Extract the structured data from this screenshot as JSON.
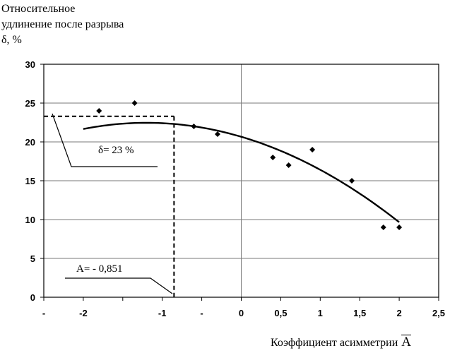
{
  "chart_data": {
    "type": "scatter",
    "ylabel_lines": [
      "Относительное",
      "удлинение после разрыва",
      "δ, %"
    ],
    "xlabel_text": "Коэффициент асимметрии",
    "xlabel_symbol": "A",
    "xlim": [
      -2.5,
      2.5
    ],
    "ylim": [
      0,
      30
    ],
    "x_ticks": [
      {
        "v": -2.5,
        "label": "-"
      },
      {
        "v": -2.0,
        "label": "-2"
      },
      {
        "v": -1.5,
        "label": ""
      },
      {
        "v": -1.0,
        "label": "-1"
      },
      {
        "v": -0.5,
        "label": "-"
      },
      {
        "v": 0.0,
        "label": "0"
      },
      {
        "v": 0.5,
        "label": "0,5"
      },
      {
        "v": 1.0,
        "label": "1"
      },
      {
        "v": 1.5,
        "label": "1,5"
      },
      {
        "v": 2.0,
        "label": "2"
      },
      {
        "v": 2.5,
        "label": "2,5"
      }
    ],
    "y_ticks": [
      {
        "v": 0,
        "label": "0"
      },
      {
        "v": 5,
        "label": "5"
      },
      {
        "v": 10,
        "label": "10"
      },
      {
        "v": 15,
        "label": "15"
      },
      {
        "v": 20,
        "label": "20"
      },
      {
        "v": 25,
        "label": "25"
      },
      {
        "v": 30,
        "label": "30"
      }
    ],
    "grid": {
      "horizontal": true,
      "vertical_at_zero": true
    },
    "points": [
      {
        "x": -1.8,
        "y": 24.0
      },
      {
        "x": -1.35,
        "y": 25.0
      },
      {
        "x": -0.6,
        "y": 22.0
      },
      {
        "x": -0.3,
        "y": 21.0
      },
      {
        "x": 0.4,
        "y": 18.0
      },
      {
        "x": 0.6,
        "y": 17.0
      },
      {
        "x": 0.9,
        "y": 19.0
      },
      {
        "x": 1.4,
        "y": 15.0
      },
      {
        "x": 1.8,
        "y": 9.0
      },
      {
        "x": 2.0,
        "y": 9.0
      }
    ],
    "trend": {
      "type": "polynomial",
      "x_range": [
        -2.0,
        2.0
      ],
      "coefficients": [
        20.66,
        -3.0,
        -1.25
      ]
    },
    "marker": {
      "x": -0.851,
      "y": 23.3
    },
    "annotations": {
      "delta_label": "δ= 23 %",
      "a_label": "A= - 0,851"
    }
  }
}
